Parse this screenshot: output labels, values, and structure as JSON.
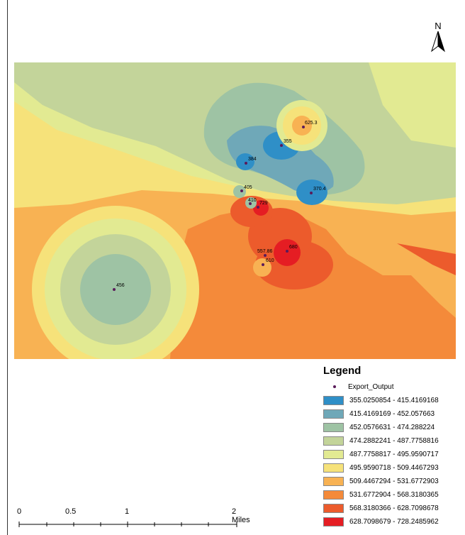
{
  "north_arrow": {
    "label": "N",
    "icon": "north-arrow-icon"
  },
  "map": {
    "points": [
      {
        "label": "625.3",
        "value": 625.3
      },
      {
        "label": "355",
        "value": 355
      },
      {
        "label": "384",
        "value": 384
      },
      {
        "label": "370.4",
        "value": 370.4
      },
      {
        "label": "405",
        "value": 405
      },
      {
        "label": "410",
        "value": 410
      },
      {
        "label": "729",
        "value": 729
      },
      {
        "label": "680",
        "value": 680
      },
      {
        "label": "557.86",
        "value": 557.86
      },
      {
        "label": "610",
        "value": 610
      },
      {
        "label": "456",
        "value": 456
      }
    ]
  },
  "legend": {
    "title": "Legend",
    "point_label": "Export_Output",
    "point_color": "#5a1b5a",
    "classes": [
      {
        "range": "355.0250854 - 415.4169168",
        "color": "#2f8fc7"
      },
      {
        "range": "415.4169169 - 452.057663",
        "color": "#6fa8b8"
      },
      {
        "range": "452.0576631 - 474.288224",
        "color": "#9ec3a4"
      },
      {
        "range": "474.2882241 - 487.7758816",
        "color": "#c3d49a"
      },
      {
        "range": "487.7758817 - 495.9590717",
        "color": "#e2ea92"
      },
      {
        "range": "495.9590718 - 509.4467293",
        "color": "#f6e27a"
      },
      {
        "range": "509.4467294 - 531.6772903",
        "color": "#f8b253"
      },
      {
        "range": "531.6772904 - 568.3180365",
        "color": "#f48a3a"
      },
      {
        "range": "568.3180366 - 628.7098678",
        "color": "#ec5b2c"
      },
      {
        "range": "628.7098679 - 728.2485962",
        "color": "#e51d23"
      }
    ]
  },
  "scale_bar": {
    "labels": [
      "0",
      "0.5",
      "1",
      "2 Miles"
    ]
  }
}
